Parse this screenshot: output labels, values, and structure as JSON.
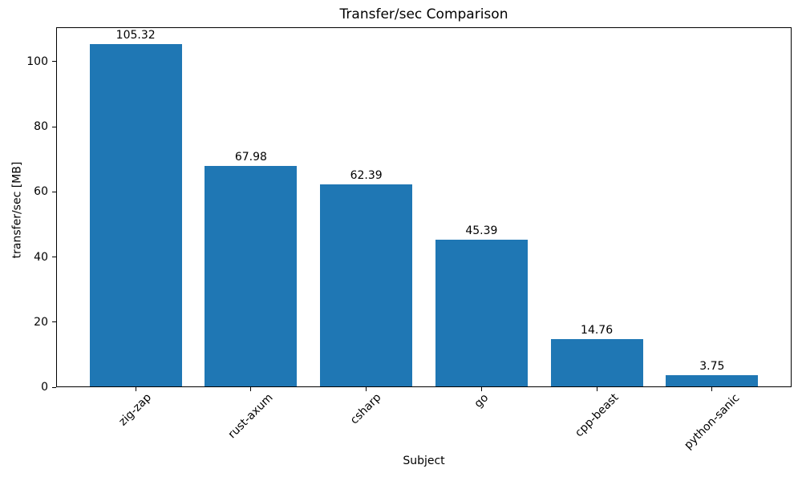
{
  "chart_data": {
    "type": "bar",
    "title": "Transfer/sec Comparison",
    "xlabel": "Subject",
    "ylabel": "transfer/sec [MB]",
    "categories": [
      "zig-zap",
      "rust-axum",
      "csharp",
      "go",
      "cpp-beast",
      "python-sanic"
    ],
    "values": [
      105.32,
      67.98,
      62.39,
      45.39,
      14.76,
      3.75
    ],
    "value_labels": [
      "105.32",
      "67.98",
      "62.39",
      "45.39",
      "14.76",
      "3.75"
    ],
    "yticks": [
      0,
      20,
      40,
      60,
      80,
      100
    ],
    "ylim": [
      0,
      110.59
    ],
    "xlim": [
      -0.69,
      5.69
    ],
    "bar_width": 0.8,
    "bar_color": "#1f77b4",
    "axis_color": "#000000",
    "grid": false,
    "legend_position": "none"
  }
}
